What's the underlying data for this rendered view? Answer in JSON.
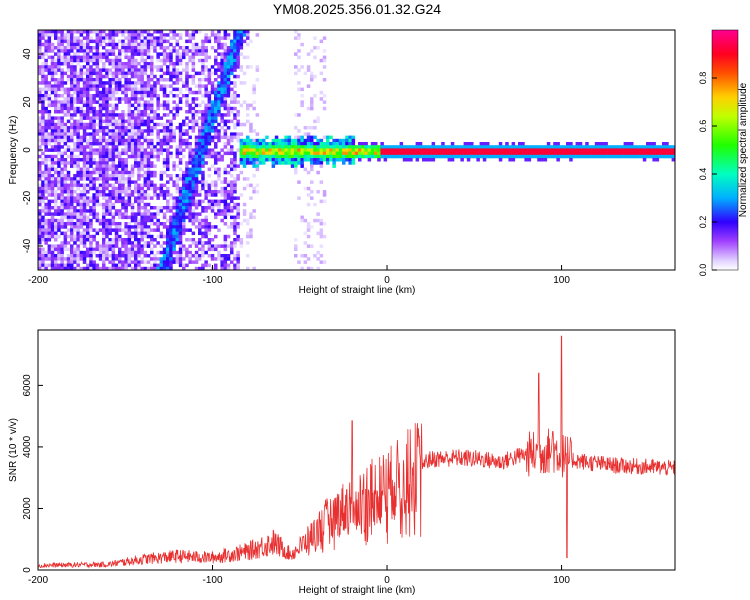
{
  "title": "YM08.2025.356.01.32.G24",
  "chart_data": [
    {
      "type": "heatmap",
      "xlabel": "Height of straight line (km)",
      "ylabel": "Frequency (Hz)",
      "xlim": [
        -200,
        165
      ],
      "ylim": [
        -50,
        50
      ],
      "x_ticks": [
        -200,
        -100,
        0,
        100
      ],
      "y_ticks": [
        -40,
        -20,
        0,
        20,
        40
      ],
      "colorbar": {
        "label": "Normalized spectral amplitude",
        "range": [
          0.0,
          1.0
        ],
        "ticks": [
          0.0,
          0.2,
          0.4,
          0.6,
          0.8
        ],
        "tick_labels": [
          "0.0",
          "0.2",
          "0.4",
          "0.6",
          "0.8"
        ],
        "colors": [
          "#ffffff",
          "#c8a0ff",
          "#8000ff",
          "#0000ff",
          "#00ffff",
          "#00ff00",
          "#ffff00",
          "#ff8000",
          "#ff0000",
          "#ff0090"
        ]
      },
      "features": {
        "noise_region_x": [
          -200,
          -85
        ],
        "diagonal_streak": {
          "start": [
            -130,
            -50
          ],
          "end": [
            -85,
            50
          ]
        },
        "carrier_line": {
          "x_start": -85,
          "x_end": 165,
          "frequency": 0
        }
      }
    },
    {
      "type": "line",
      "xlabel": "Height of straight line (km)",
      "ylabel": "SNR (10 * v/v)",
      "xlim": [
        -200,
        165
      ],
      "ylim": [
        0,
        7800
      ],
      "x_ticks": [
        -200,
        -100,
        0,
        100
      ],
      "y_ticks": [
        0,
        2000,
        4000,
        6000
      ],
      "series": [
        {
          "color": "#e83030",
          "x": [
            -200,
            -160,
            -140,
            -120,
            -100,
            -80,
            -65,
            -55,
            -45,
            -35,
            -25,
            -15,
            -5,
            5,
            15,
            25,
            40,
            55,
            65,
            75,
            85,
            95,
            105,
            115,
            130,
            150,
            165
          ],
          "y": [
            150,
            180,
            350,
            450,
            400,
            600,
            900,
            500,
            1000,
            1600,
            2000,
            2300,
            2600,
            2900,
            3300,
            3600,
            3650,
            3600,
            3500,
            3700,
            3800,
            3900,
            3600,
            3500,
            3400,
            3350,
            3300
          ],
          "spikes": [
            {
              "x": -20,
              "y": 4850
            },
            {
              "x": 87,
              "y": 6400
            },
            {
              "x": 95,
              "y": 4500
            },
            {
              "x": 100,
              "y": 7600
            },
            {
              "x": 103,
              "y": 400
            }
          ]
        }
      ]
    }
  ]
}
